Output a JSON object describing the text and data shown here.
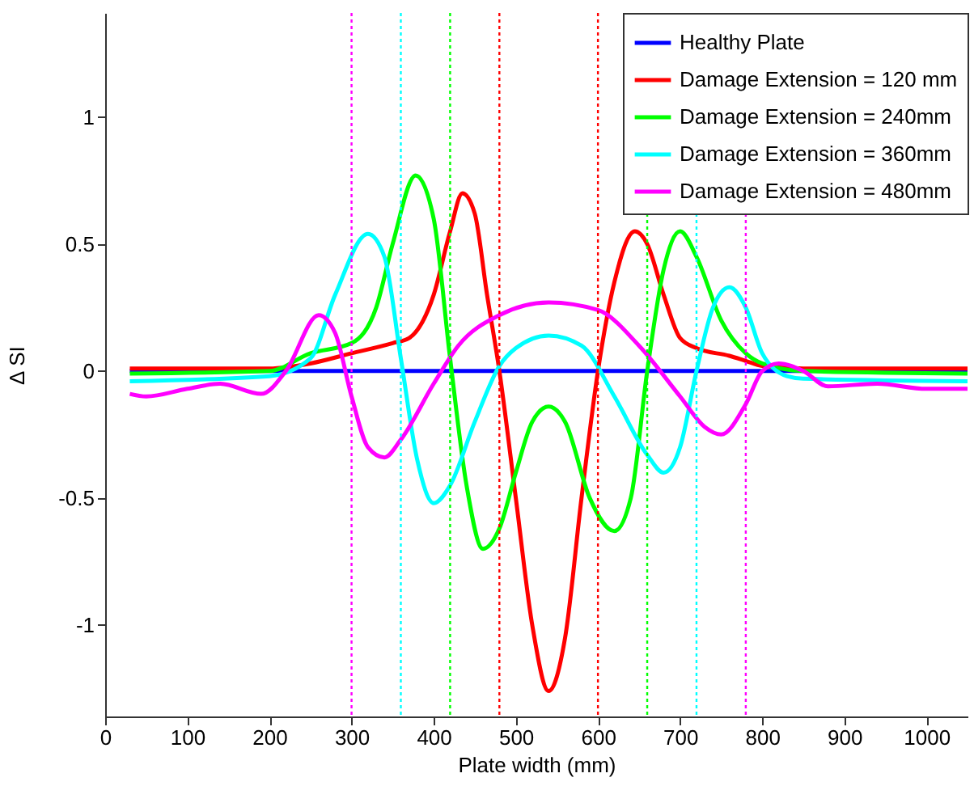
{
  "chart_data": {
    "type": "line",
    "xlabel": "Plate width (mm)",
    "ylabel": "Δ SI",
    "xlim": [
      0,
      1050
    ],
    "ylim": [
      -1.36,
      1.41
    ],
    "xticks": [
      0,
      100,
      200,
      300,
      400,
      500,
      600,
      700,
      800,
      900,
      1000
    ],
    "yticks": [
      -1,
      -0.5,
      0,
      0.5,
      1
    ],
    "grid": false,
    "legend": "top right",
    "series": [
      {
        "name": "Healthy Plate",
        "color": "#0000ff",
        "x": [
          30,
          1050
        ],
        "values": [
          0,
          0
        ]
      },
      {
        "name": "Damage Extension = 120 mm",
        "color": "#ff0000",
        "x": [
          30,
          200,
          250,
          300,
          350,
          370,
          400,
          420,
          435,
          450,
          465,
          480,
          500,
          520,
          540,
          560,
          580,
          600,
          620,
          645,
          660,
          680,
          700,
          720,
          760,
          780,
          800,
          850,
          1050
        ],
        "values": [
          0.01,
          0.01,
          0.03,
          0.07,
          0.11,
          0.13,
          0.3,
          0.55,
          0.7,
          0.62,
          0.3,
          0,
          -0.5,
          -1.0,
          -1.26,
          -1.05,
          -0.5,
          0,
          0.35,
          0.55,
          0.5,
          0.3,
          0.13,
          0.09,
          0.06,
          0.04,
          0.02,
          0.01,
          0.01
        ]
      },
      {
        "name": "Damage Extension = 240mm",
        "color": "#00ff00",
        "x": [
          30,
          200,
          250,
          300,
          330,
          350,
          378,
          400,
          420,
          440,
          460,
          480,
          500,
          520,
          540,
          560,
          590,
          620,
          640,
          660,
          680,
          700,
          720,
          750,
          780,
          800,
          850,
          1050
        ],
        "values": [
          -0.01,
          0,
          0.07,
          0.11,
          0.25,
          0.5,
          0.77,
          0.6,
          0.05,
          -0.45,
          -0.7,
          -0.62,
          -0.4,
          -0.2,
          -0.14,
          -0.2,
          -0.5,
          -0.63,
          -0.5,
          0,
          0.4,
          0.55,
          0.45,
          0.2,
          0.07,
          0.03,
          0,
          -0.01
        ]
      },
      {
        "name": "Damage Extension = 360mm",
        "color": "#00ffff",
        "x": [
          30,
          200,
          250,
          280,
          320,
          340,
          360,
          380,
          400,
          420,
          450,
          480,
          500,
          540,
          580,
          620,
          660,
          680,
          700,
          720,
          740,
          760,
          780,
          800,
          830,
          850,
          1050
        ],
        "values": [
          -0.04,
          -0.02,
          0.05,
          0.3,
          0.54,
          0.45,
          0.05,
          -0.35,
          -0.52,
          -0.45,
          -0.2,
          0.02,
          0.09,
          0.14,
          0.1,
          -0.1,
          -0.33,
          -0.4,
          -0.3,
          0,
          0.25,
          0.33,
          0.25,
          0.07,
          -0.02,
          -0.03,
          -0.04
        ]
      },
      {
        "name": "Damage Extension = 480mm",
        "color": "#ff00ff",
        "x": [
          30,
          50,
          100,
          140,
          190,
          220,
          260,
          280,
          300,
          320,
          340,
          360,
          400,
          430,
          480,
          540,
          600,
          650,
          700,
          730,
          750,
          780,
          800,
          820,
          850,
          880,
          940,
          1000,
          1050
        ],
        "values": [
          -0.09,
          -0.1,
          -0.07,
          -0.05,
          -0.09,
          0,
          0.22,
          0.15,
          -0.1,
          -0.3,
          -0.34,
          -0.27,
          -0.05,
          0.1,
          0.22,
          0.27,
          0.24,
          0.1,
          -0.1,
          -0.22,
          -0.25,
          -0.13,
          0,
          0.03,
          0,
          -0.06,
          -0.05,
          -0.07,
          -0.07
        ]
      }
    ],
    "ref_lines": [
      {
        "axis": "x",
        "value": 300,
        "color": "#ff00ff",
        "line_style": "dotted"
      },
      {
        "axis": "x",
        "value": 360,
        "color": "#00ffff",
        "line_style": "dotted"
      },
      {
        "axis": "x",
        "value": 420,
        "color": "#00ff00",
        "line_style": "dotted"
      },
      {
        "axis": "x",
        "value": 480,
        "color": "#ff0000",
        "line_style": "dotted"
      },
      {
        "axis": "x",
        "value": 600,
        "color": "#ff0000",
        "line_style": "dotted"
      },
      {
        "axis": "x",
        "value": 660,
        "color": "#00ff00",
        "line_style": "dotted"
      },
      {
        "axis": "x",
        "value": 720,
        "color": "#00ffff",
        "line_style": "dotted"
      },
      {
        "axis": "x",
        "value": 780,
        "color": "#ff00ff",
        "line_style": "dotted"
      }
    ]
  }
}
